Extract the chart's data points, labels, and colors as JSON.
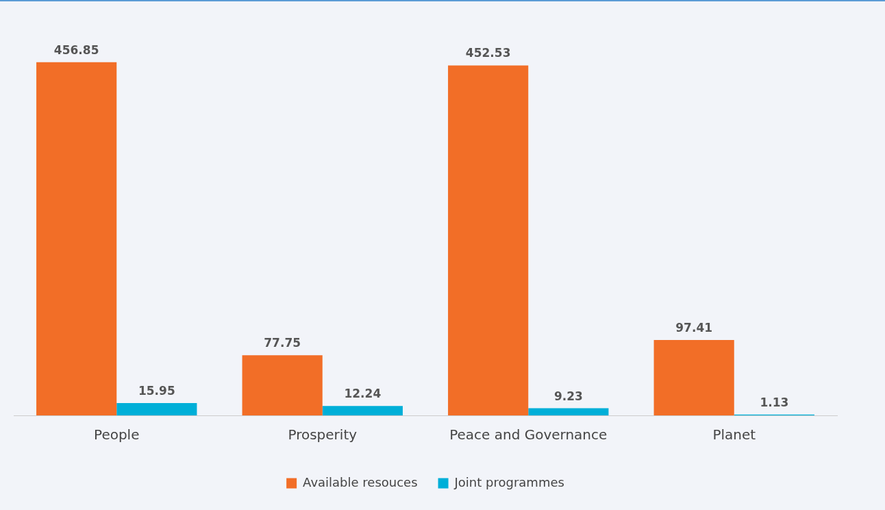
{
  "chart_data": {
    "type": "bar",
    "categories": [
      "People",
      "Prosperity",
      "Peace and Governance",
      "Planet"
    ],
    "series": [
      {
        "name": "Available resouces",
        "color": "#f26e27",
        "values": [
          456.85,
          77.75,
          452.53,
          97.41
        ]
      },
      {
        "name": "Joint programmes",
        "color": "#00afd8",
        "values": [
          15.95,
          12.24,
          9.23,
          1.13
        ]
      }
    ],
    "data_labels": true,
    "legend": "bottom",
    "grid": false
  }
}
